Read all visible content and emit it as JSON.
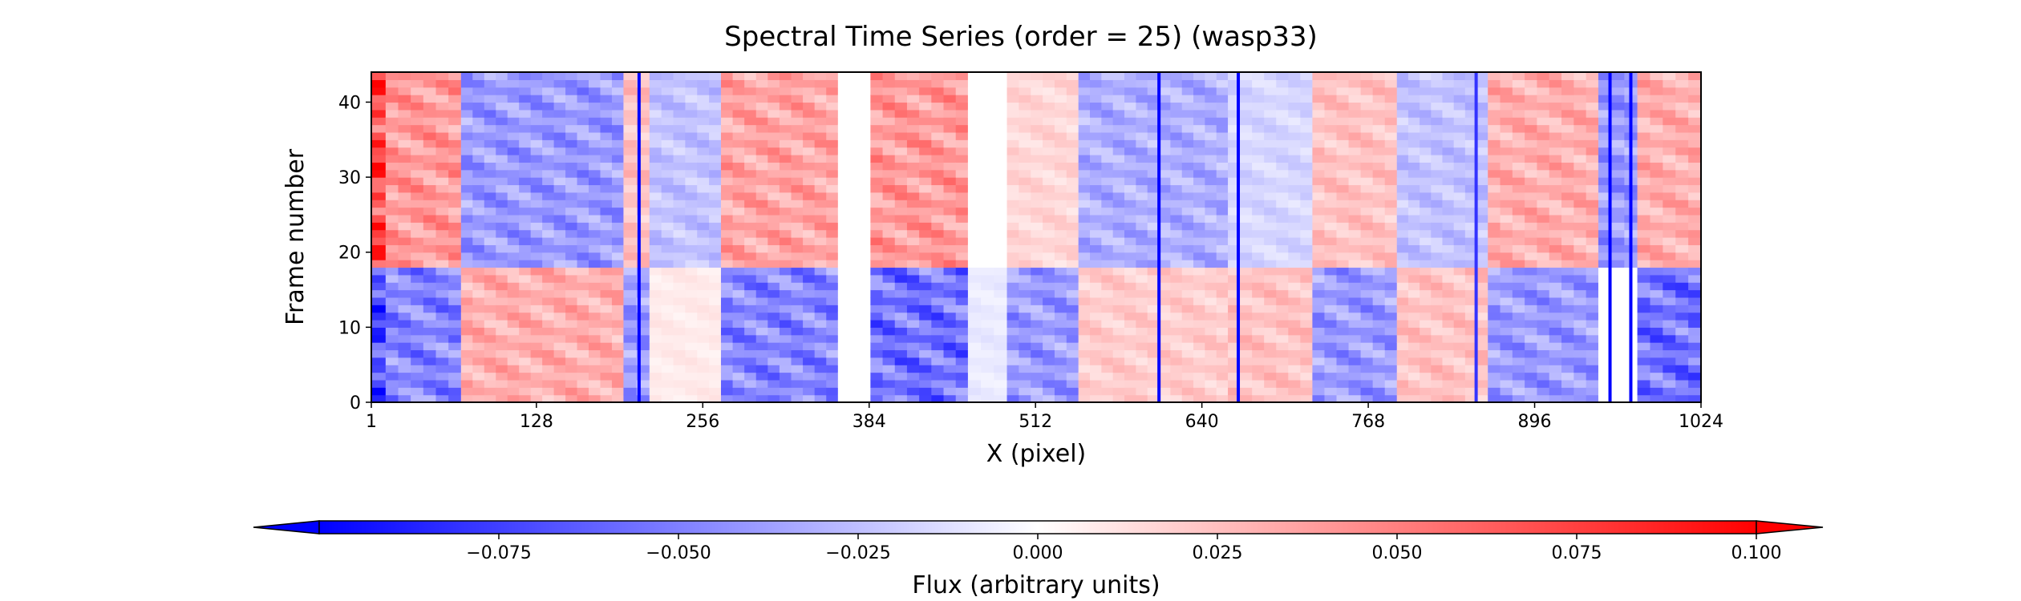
{
  "chart_data": {
    "type": "heatmap",
    "title": "Spectral Time Series (order = 25) (wasp33)",
    "xlabel": "X (pixel)",
    "ylabel": "Frame number",
    "xlim": [
      1,
      1024
    ],
    "ylim": [
      0,
      44
    ],
    "n_frames": 44,
    "xticks": [
      1,
      128,
      256,
      384,
      512,
      640,
      768,
      896,
      1024
    ],
    "yticks": [
      0,
      10,
      20,
      30,
      40
    ],
    "colormap": "bwr",
    "colorbar": {
      "label": "Flux (arbitrary units)",
      "vmin": -0.1,
      "vmax": 0.1,
      "extend": "both",
      "ticks": [
        -0.075,
        -0.05,
        -0.025,
        0.0,
        0.025,
        0.05,
        0.075,
        0.1
      ],
      "tick_labels": [
        "−0.075",
        "−0.050",
        "−0.025",
        "0.000",
        "0.025",
        "0.050",
        "0.075",
        "0.100"
      ],
      "colors": {
        "min": "#0000ff",
        "mid": "#ffffff",
        "max": "#ff0000"
      }
    },
    "frame_split": 18,
    "column_regions": [
      {
        "x_range": [
          1,
          12
        ],
        "upper_frames": 0.09,
        "lower_frames": -0.09
      },
      {
        "x_range": [
          12,
          70
        ],
        "upper_frames": 0.05,
        "lower_frames": -0.06
      },
      {
        "x_range": [
          70,
          195
        ],
        "upper_frames": -0.05,
        "lower_frames": 0.04
      },
      {
        "x_range": [
          195,
          215
        ],
        "upper_frames": 0.03,
        "lower_frames": -0.05
      },
      {
        "x_range": [
          215,
          270
        ],
        "upper_frames": -0.03,
        "lower_frames": 0.01
      },
      {
        "x_range": [
          270,
          360
        ],
        "upper_frames": 0.045,
        "lower_frames": -0.06
      },
      {
        "x_range": [
          360,
          385
        ],
        "upper_frames": 0.0,
        "lower_frames": 0.0
      },
      {
        "x_range": [
          385,
          460
        ],
        "upper_frames": 0.05,
        "lower_frames": -0.07
      },
      {
        "x_range": [
          460,
          490
        ],
        "upper_frames": 0.0,
        "lower_frames": -0.01
      },
      {
        "x_range": [
          490,
          545
        ],
        "upper_frames": 0.02,
        "lower_frames": -0.05
      },
      {
        "x_range": [
          545,
          660
        ],
        "upper_frames": -0.04,
        "lower_frames": 0.025
      },
      {
        "x_range": [
          660,
          725
        ],
        "upper_frames": -0.02,
        "lower_frames": 0.03
      },
      {
        "x_range": [
          725,
          790
        ],
        "upper_frames": 0.03,
        "lower_frames": -0.05
      },
      {
        "x_range": [
          790,
          860
        ],
        "upper_frames": -0.03,
        "lower_frames": 0.03
      },
      {
        "x_range": [
          860,
          945
        ],
        "upper_frames": 0.04,
        "lower_frames": -0.05
      },
      {
        "x_range": [
          945,
          975
        ],
        "upper_frames": -0.05,
        "lower_frames": 0.0
      },
      {
        "x_range": [
          975,
          1024
        ],
        "upper_frames": 0.04,
        "lower_frames": -0.07
      }
    ],
    "line_features": [
      {
        "x": 207,
        "value": -0.1
      },
      {
        "x": 607,
        "value": -0.1
      },
      {
        "x": 668,
        "value": -0.1
      },
      {
        "x": 851,
        "value": -0.08
      },
      {
        "x": 954,
        "value": -0.1
      },
      {
        "x": 970,
        "value": -0.1
      }
    ]
  }
}
